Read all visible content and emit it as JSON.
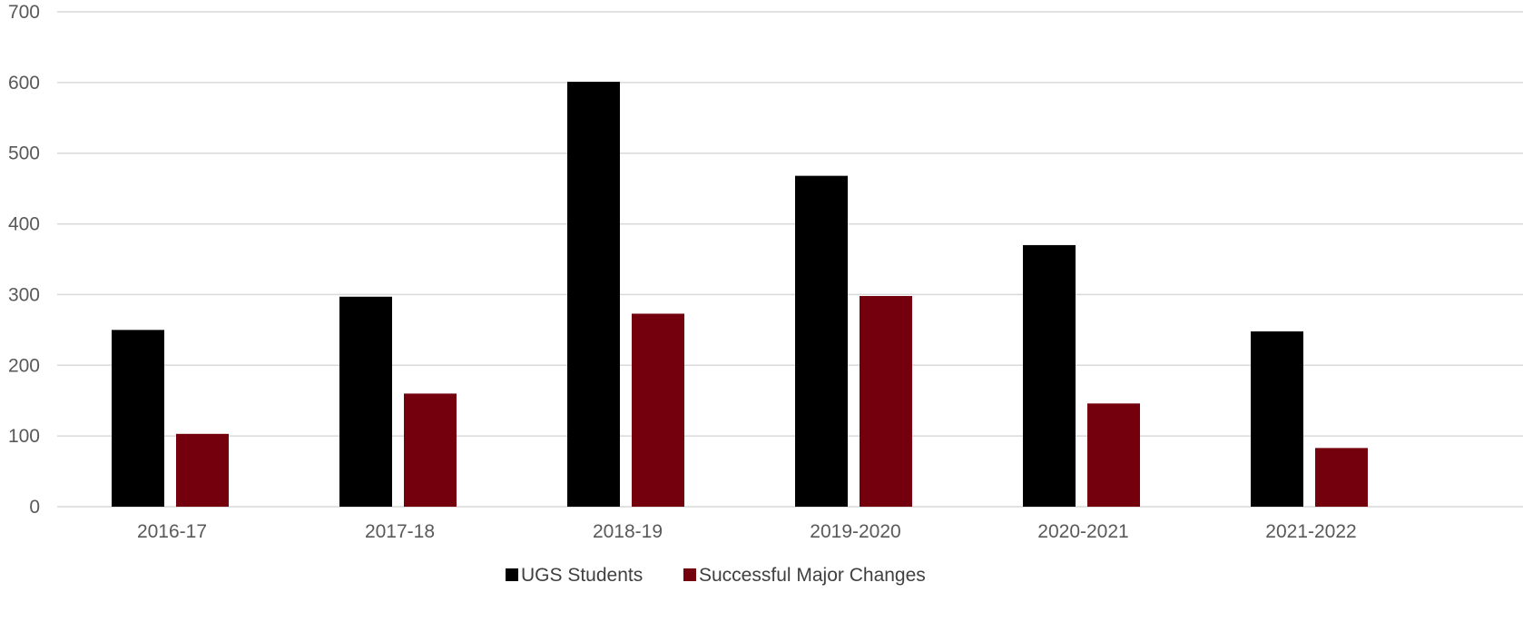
{
  "chart_data": {
    "type": "bar",
    "categories": [
      "2016-17",
      "2017-18",
      "2018-19",
      "2019-2020",
      "2020-2021",
      "2021-2022"
    ],
    "series": [
      {
        "name": "UGS Students",
        "color": "#000000",
        "values": [
          250,
          297,
          601,
          468,
          370,
          248
        ]
      },
      {
        "name": "Successful Major Changes",
        "color": "#74000E",
        "values": [
          103,
          160,
          273,
          298,
          146,
          83
        ]
      }
    ],
    "ylim": [
      0,
      700
    ],
    "yticks": [
      0,
      100,
      200,
      300,
      400,
      500,
      600,
      700
    ],
    "grid": true,
    "legend_position": "bottom",
    "gridline_color": "#d9d9d9"
  }
}
